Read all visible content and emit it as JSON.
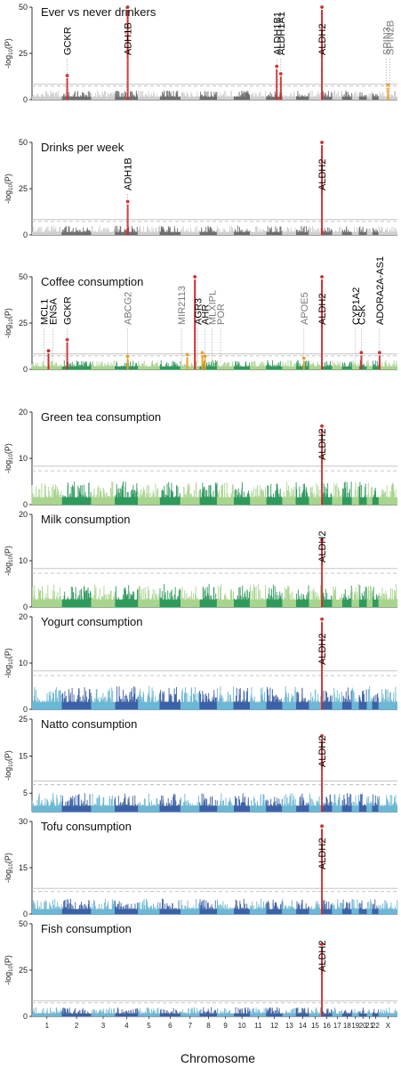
{
  "figure": {
    "xlabel": "Chromosome",
    "chromosomes": [
      "1",
      "2",
      "3",
      "4",
      "5",
      "6",
      "7",
      "8",
      "9",
      "10",
      "11",
      "12",
      "13",
      "14",
      "15",
      "16",
      "17",
      "18",
      "19",
      "20",
      "21",
      "22",
      "X"
    ],
    "chromosome_tick_labels": [
      "1",
      "2",
      "3",
      "4",
      "5",
      "6",
      "7",
      "8",
      "9",
      "10",
      "11",
      "12",
      "13",
      "14",
      "15",
      "16",
      "17",
      "18",
      "19",
      "20",
      "21",
      "22",
      "X"
    ],
    "ylabel_parts": [
      "-log",
      "10",
      "(P)"
    ],
    "colors": {
      "black": "#000000",
      "grey": "#777777",
      "red": "#d42a2a",
      "orange": "#f0a020",
      "gray_light": "#cfcfcf",
      "gray_dark": "#6f6f6f",
      "green_light": "#a9d58e",
      "green_dark": "#2e9a5d",
      "blue_light": "#6bb8d6",
      "blue_dark": "#3b62a8",
      "threshold": "#bdbdbd"
    }
  },
  "chart_data": [
    {
      "type": "scatter",
      "title": "Ever vs never drinkers",
      "palette": "gray",
      "ylim": [
        0,
        50
      ],
      "yticks": [
        0,
        25,
        50
      ],
      "significance_lines": [
        7.3,
        8.3
      ],
      "peaks": [
        {
          "chrom": "2",
          "pos": 0.18,
          "value": 13,
          "color": "red"
        },
        {
          "chrom": "4",
          "pos": 0.55,
          "value": 50,
          "color": "red"
        },
        {
          "chrom": "12",
          "pos": 0.65,
          "value": 18,
          "color": "red"
        },
        {
          "chrom": "12",
          "pos": 0.9,
          "value": 14,
          "color": "red"
        },
        {
          "chrom": "16",
          "pos": 0.05,
          "value": 50,
          "color": "red"
        },
        {
          "chrom": "X",
          "pos": 0.5,
          "value": 8,
          "color": "orange"
        }
      ],
      "gene_labels": [
        {
          "text": "GCKR",
          "chrom": "2",
          "pos": 0.18,
          "color": "black"
        },
        {
          "text": "ADH1B",
          "chrom": "4",
          "pos": 0.55,
          "color": "black"
        },
        {
          "text": "ALDH1B1",
          "chrom": "12",
          "pos": 0.65,
          "color": "black"
        },
        {
          "text": "ALDH1A1",
          "chrom": "12",
          "pos": 0.9,
          "color": "black"
        },
        {
          "text": "ALDH2",
          "chrom": "16",
          "pos": 0.05,
          "color": "black"
        },
        {
          "text": "SPIN3",
          "chrom": "X",
          "pos": 0.4,
          "color": "grey"
        },
        {
          "text": "SPIN2B",
          "chrom": "X",
          "pos": 0.6,
          "color": "grey"
        }
      ]
    },
    {
      "type": "scatter",
      "title": "Drinks per week",
      "palette": "gray",
      "ylim": [
        0,
        50
      ],
      "yticks": [
        0,
        25,
        50
      ],
      "significance_lines": [
        7.3,
        8.3
      ],
      "peaks": [
        {
          "chrom": "4",
          "pos": 0.55,
          "value": 18,
          "color": "red"
        },
        {
          "chrom": "16",
          "pos": 0.05,
          "value": 50,
          "color": "red"
        }
      ],
      "gene_labels": [
        {
          "text": "ADH1B",
          "chrom": "4",
          "pos": 0.55,
          "color": "black"
        },
        {
          "text": "ALDH2",
          "chrom": "16",
          "pos": 0.05,
          "color": "black"
        }
      ]
    },
    {
      "type": "scatter",
      "title": "Coffee consumption",
      "palette": "green",
      "ylim": [
        0,
        50
      ],
      "yticks": [
        0,
        25,
        50
      ],
      "significance_lines": [
        7.3,
        8.3
      ],
      "peaks": [
        {
          "chrom": "1",
          "pos": 0.55,
          "value": 10,
          "color": "red"
        },
        {
          "chrom": "2",
          "pos": 0.18,
          "value": 16,
          "color": "red"
        },
        {
          "chrom": "4",
          "pos": 0.55,
          "value": 7,
          "color": "orange"
        },
        {
          "chrom": "7",
          "pos": 0.35,
          "value": 8,
          "color": "orange"
        },
        {
          "chrom": "7",
          "pos": 0.75,
          "value": 50,
          "color": "red"
        },
        {
          "chrom": "8",
          "pos": 0.15,
          "value": 9,
          "color": "orange"
        },
        {
          "chrom": "8",
          "pos": 0.3,
          "value": 7,
          "color": "orange"
        },
        {
          "chrom": "14",
          "pos": 0.6,
          "value": 6,
          "color": "orange"
        },
        {
          "chrom": "16",
          "pos": 0.05,
          "value": 50,
          "color": "red"
        },
        {
          "chrom": "20",
          "pos": 0.3,
          "value": 9,
          "color": "red"
        },
        {
          "chrom": "X",
          "pos": 0.05,
          "value": 9,
          "color": "red"
        }
      ],
      "gene_labels": [
        {
          "text": "MCL1",
          "chrom": "1",
          "pos": 0.4,
          "color": "black"
        },
        {
          "text": "ENSA",
          "chrom": "1",
          "pos": 0.7,
          "color": "black"
        },
        {
          "text": "GCKR",
          "chrom": "2",
          "pos": 0.18,
          "color": "black"
        },
        {
          "text": "ABCG2",
          "chrom": "4",
          "pos": 0.55,
          "color": "grey"
        },
        {
          "text": "MIR2113",
          "chrom": "7",
          "pos": 0.05,
          "color": "grey"
        },
        {
          "text": "AGR3",
          "chrom": "7",
          "pos": 0.9,
          "color": "black"
        },
        {
          "text": "AHR",
          "chrom": "8",
          "pos": 0.3,
          "color": "black"
        },
        {
          "text": "MLXIPL",
          "chrom": "8",
          "pos": 0.7,
          "color": "grey"
        },
        {
          "text": "POR",
          "chrom": "9",
          "pos": 0.2,
          "color": "grey"
        },
        {
          "text": "APOE5",
          "chrom": "14",
          "pos": 0.6,
          "color": "grey"
        },
        {
          "text": "ALDH2",
          "chrom": "16",
          "pos": 0.05,
          "color": "black"
        },
        {
          "text": "CYP1A2",
          "chrom": "19",
          "pos": 0.5,
          "color": "black"
        },
        {
          "text": "CSK",
          "chrom": "20",
          "pos": 0.3,
          "color": "black"
        },
        {
          "text": "ADORA2A-AS1",
          "chrom": "X",
          "pos": 0.05,
          "color": "black"
        }
      ]
    },
    {
      "type": "scatter",
      "title": "Green tea consumption",
      "palette": "green",
      "ylim": [
        0,
        20
      ],
      "yticks": [
        0,
        10,
        20
      ],
      "significance_lines": [
        7.3,
        8.3
      ],
      "peaks": [
        {
          "chrom": "16",
          "pos": 0.05,
          "value": 17,
          "color": "red"
        }
      ],
      "gene_labels": [
        {
          "text": "ALDH2",
          "chrom": "16",
          "pos": 0.05,
          "color": "black"
        }
      ]
    },
    {
      "type": "scatter",
      "title": "Milk consumption",
      "palette": "green",
      "ylim": [
        0,
        20
      ],
      "yticks": [
        0,
        10,
        20
      ],
      "significance_lines": [
        7.3,
        8.3
      ],
      "peaks": [
        {
          "chrom": "16",
          "pos": 0.05,
          "value": 14.5,
          "color": "red"
        }
      ],
      "gene_labels": [
        {
          "text": "ALDH2",
          "chrom": "16",
          "pos": 0.05,
          "color": "black"
        }
      ]
    },
    {
      "type": "scatter",
      "title": "Yogurt consumption",
      "palette": "blue",
      "ylim": [
        0,
        20
      ],
      "yticks": [
        0,
        10,
        20
      ],
      "significance_lines": [
        7.3,
        8.3
      ],
      "peaks": [
        {
          "chrom": "16",
          "pos": 0.05,
          "value": 19.5,
          "color": "red"
        }
      ],
      "gene_labels": [
        {
          "text": "ALDH2",
          "chrom": "16",
          "pos": 0.05,
          "color": "black"
        }
      ]
    },
    {
      "type": "scatter",
      "title": "Natto consumption",
      "palette": "blue",
      "ylim": [
        0,
        25
      ],
      "yticks": [
        5,
        15,
        25
      ],
      "significance_lines": [
        7.3,
        8.3
      ],
      "peaks": [
        {
          "chrom": "16",
          "pos": 0.05,
          "value": 20.5,
          "color": "red"
        }
      ],
      "gene_labels": [
        {
          "text": "ALDH2",
          "chrom": "16",
          "pos": 0.05,
          "color": "black"
        }
      ]
    },
    {
      "type": "scatter",
      "title": "Tofu consumption",
      "palette": "blue",
      "ylim": [
        0,
        30
      ],
      "yticks": [
        0,
        15,
        30
      ],
      "significance_lines": [
        7.3,
        8.3
      ],
      "peaks": [
        {
          "chrom": "16",
          "pos": 0.05,
          "value": 28.5,
          "color": "red"
        }
      ],
      "gene_labels": [
        {
          "text": "ALDH2",
          "chrom": "16",
          "pos": 0.05,
          "color": "black"
        }
      ]
    },
    {
      "type": "scatter",
      "title": "Fish consumption",
      "palette": "blue",
      "ylim": [
        0,
        50
      ],
      "yticks": [
        0,
        25,
        50
      ],
      "significance_lines": [
        7.3,
        8.3
      ],
      "peaks": [
        {
          "chrom": "16",
          "pos": 0.05,
          "value": 39,
          "color": "red"
        }
      ],
      "gene_labels": [
        {
          "text": "ALDH2",
          "chrom": "16",
          "pos": 0.05,
          "color": "black"
        }
      ]
    }
  ]
}
